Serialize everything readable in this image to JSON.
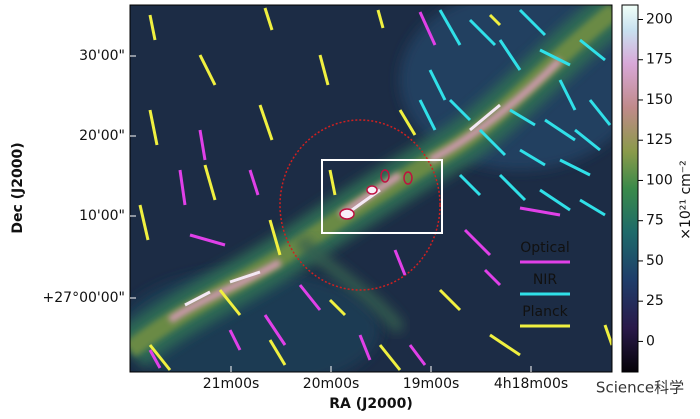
{
  "chart_data": {
    "type": "image",
    "xlabel": "RA (J2000)",
    "ylabel": "Dec (J2000)",
    "xtick_labels": [
      "21m00s",
      "20m00s",
      "19m00s",
      "4h18m00s"
    ],
    "ytick_labels": [
      "30'00\"",
      "20'00\"",
      "10'00\"",
      "+27°00'00\""
    ],
    "colorbar": {
      "label": "×10²¹ cm⁻²",
      "clim": [
        -19,
        209
      ],
      "ticks": [
        0,
        25,
        50,
        75,
        100,
        125,
        150,
        175,
        200
      ]
    },
    "legend": [
      {
        "name": "Optical",
        "color": "#e040e8"
      },
      {
        "name": "NIR",
        "color": "#30e0e8"
      },
      {
        "name": "Planck",
        "color": "#f0f040"
      }
    ],
    "watermark": "Science科学"
  }
}
